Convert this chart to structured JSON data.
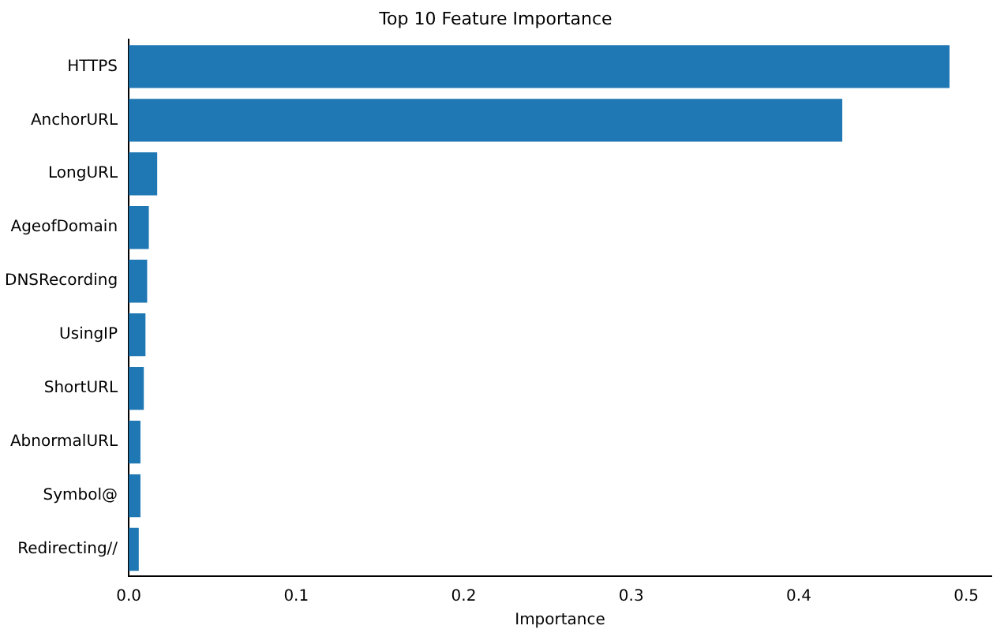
{
  "chart_data": {
    "type": "bar",
    "orientation": "horizontal",
    "title": "Top 10 Feature Importance",
    "xlabel": "Importance",
    "categories": [
      "HTTPS",
      "AnchorURL",
      "LongURL",
      "AgeofDomain",
      "DNSRecording",
      "UsingIP",
      "ShortURL",
      "AbnormalURL",
      "Symbol@",
      "Redirecting//"
    ],
    "values": [
      0.49,
      0.426,
      0.017,
      0.012,
      0.011,
      0.01,
      0.009,
      0.007,
      0.007,
      0.006
    ],
    "color": "#1f77b4",
    "xlim": [
      0,
      0.515
    ],
    "xticks": [
      {
        "value": 0,
        "label": "0.0"
      },
      0.1,
      0.2,
      0.3,
      0.4,
      0.5
    ],
    "grid": false,
    "legend": false
  }
}
